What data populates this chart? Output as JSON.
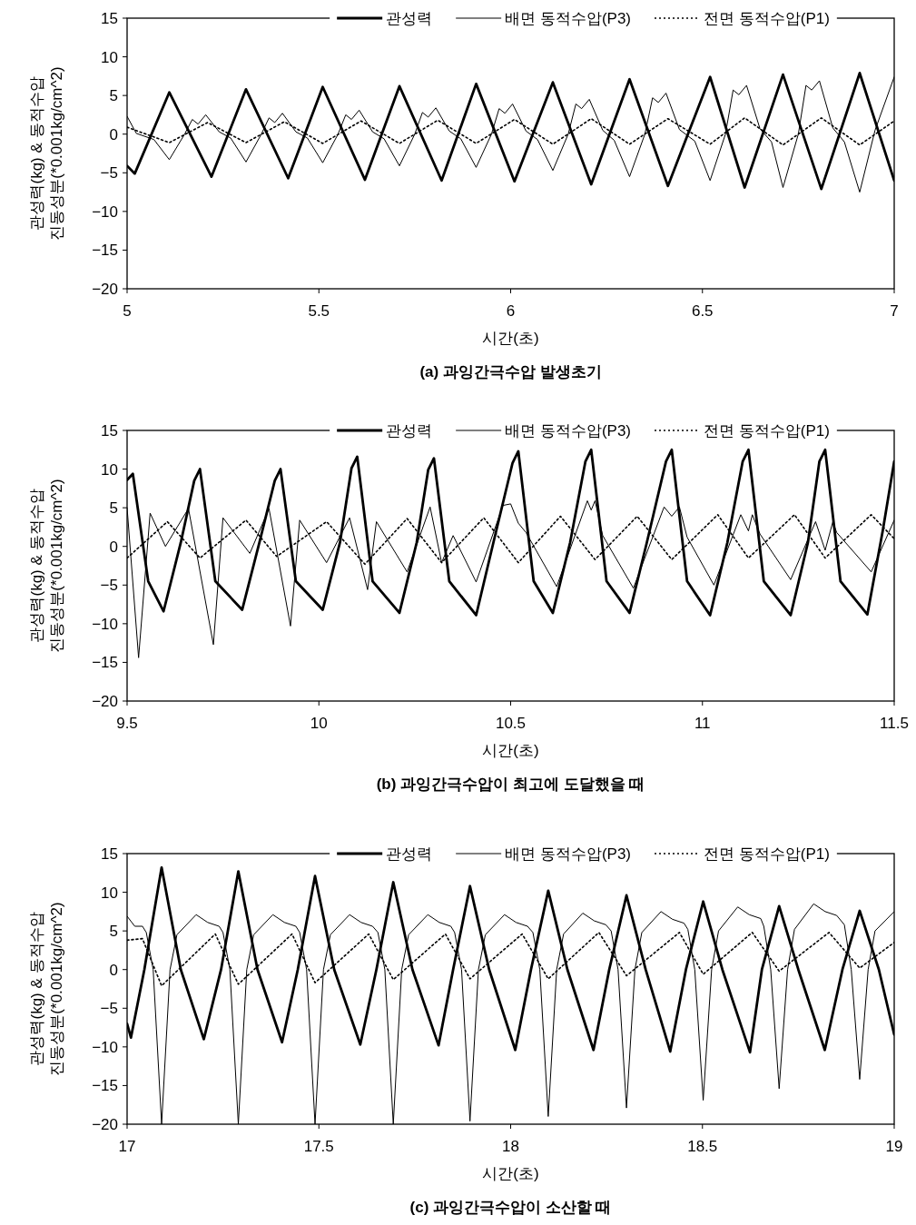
{
  "chart_data": [
    {
      "type": "line",
      "title": "(a) 과잉간극수압 발생초기",
      "xlabel": "시간(초)",
      "ylabel": "관성력(kg) & 동적수압\n진동성분(*0.001kg/cm^2)",
      "legend": "top",
      "xlim": [
        5,
        7
      ],
      "xticks": [
        5,
        5.5,
        6,
        6.5,
        7
      ],
      "ylim": [
        -20,
        15
      ],
      "yticks": [
        {
          "value": -20,
          "label": "−20"
        },
        {
          "value": -15,
          "label": "−15"
        },
        {
          "value": -10,
          "label": "−10"
        },
        {
          "value": -5,
          "label": "−5"
        },
        0,
        5,
        10,
        15
      ],
      "series": [
        {
          "name": "관성력",
          "color": "#000000",
          "line_style": "solid",
          "x": [
            5.0,
            5.02,
            5.11,
            5.22,
            5.31,
            5.42,
            5.51,
            5.62,
            5.71,
            5.82,
            5.91,
            6.01,
            6.11,
            6.21,
            6.31,
            6.41,
            6.52,
            6.61,
            6.71,
            6.81,
            6.91,
            7.0
          ],
          "values": [
            -4.1,
            -5.1,
            5.4,
            -5.5,
            5.8,
            -5.7,
            6.1,
            -5.9,
            6.2,
            -6.0,
            6.5,
            -6.1,
            6.7,
            -6.5,
            7.1,
            -6.7,
            7.4,
            -6.9,
            7.7,
            -7.1,
            7.9,
            -6.0
          ]
        },
        {
          "name": "배면 동적수압(P3)",
          "color": "#000000",
          "line_style": "solid",
          "x": [
            5.0,
            5.024,
            5.07,
            5.11,
            5.15,
            5.17,
            5.185,
            5.205,
            5.24,
            5.27,
            5.31,
            5.35,
            5.37,
            5.385,
            5.405,
            5.44,
            5.47,
            5.51,
            5.55,
            5.57,
            5.585,
            5.605,
            5.64,
            5.67,
            5.71,
            5.75,
            5.77,
            5.785,
            5.805,
            5.84,
            5.87,
            5.91,
            5.95,
            5.97,
            5.985,
            6.005,
            6.04,
            6.07,
            6.11,
            6.15,
            6.17,
            6.185,
            6.205,
            6.24,
            6.27,
            6.31,
            6.35,
            6.37,
            6.385,
            6.405,
            6.44,
            6.48,
            6.52,
            6.56,
            6.58,
            6.595,
            6.615,
            6.65,
            6.68,
            6.71,
            6.75,
            6.77,
            6.785,
            6.805,
            6.84,
            6.87,
            6.91,
            6.95,
            7.0
          ],
          "values": [
            2.3,
            0.1,
            -0.7,
            -3.3,
            0,
            1.9,
            1.3,
            2.5,
            0.3,
            -0.5,
            -3.6,
            0,
            2.1,
            1.5,
            2.7,
            0.3,
            -0.5,
            -3.7,
            0,
            2.5,
            1.9,
            3.1,
            0.3,
            -0.6,
            -4.1,
            0,
            2.8,
            2.2,
            3.4,
            0.4,
            -0.6,
            -4.3,
            0,
            3.3,
            2.7,
            3.9,
            0.4,
            -0.7,
            -4.7,
            0,
            3.9,
            3.3,
            4.5,
            0.5,
            -0.8,
            -5.5,
            0,
            4.7,
            4.1,
            5.3,
            0.6,
            -0.9,
            -6.0,
            0,
            5.7,
            5.1,
            6.3,
            0.7,
            -1.0,
            -6.9,
            0,
            6.3,
            5.7,
            6.9,
            0.8,
            -1.0,
            -7.5,
            0.5,
            7.4
          ]
        },
        {
          "name": "전면 동적수압(P1)",
          "color": "#000000",
          "line_style": "dotted",
          "x": [
            5.0,
            5.11,
            5.21,
            5.31,
            5.41,
            5.51,
            5.61,
            5.71,
            5.81,
            5.91,
            6.01,
            6.11,
            6.21,
            6.31,
            6.41,
            6.52,
            6.61,
            6.71,
            6.81,
            6.91,
            7.0
          ],
          "values": [
            0.9,
            -1.1,
            1.5,
            -1.1,
            1.6,
            -1.2,
            1.7,
            -1.2,
            1.8,
            -1.2,
            1.9,
            -1.3,
            2.0,
            -1.3,
            2.0,
            -1.3,
            2.1,
            -1.4,
            2.1,
            -1.4,
            1.7
          ]
        }
      ]
    },
    {
      "type": "line",
      "title": "(b) 과잉간극수압이 최고에 도달했을 때",
      "xlabel": "시간(초)",
      "ylabel": "관성력(kg) & 동적수압\n진동성분(*0.001kg/cm^2)",
      "legend": "top",
      "xlim": [
        9.5,
        11.5
      ],
      "xticks": [
        9.5,
        10,
        10.5,
        11,
        11.5
      ],
      "ylim": [
        -20,
        15
      ],
      "yticks": [
        {
          "value": -20,
          "label": "−20"
        },
        {
          "value": -15,
          "label": "−15"
        },
        {
          "value": -10,
          "label": "−10"
        },
        {
          "value": -5,
          "label": "−5"
        },
        0,
        5,
        10,
        15
      ],
      "series": [
        {
          "name": "관성력",
          "color": "#000000",
          "line_style": "solid",
          "x": [
            9.5,
            9.515,
            9.555,
            9.595,
            9.64,
            9.675,
            9.69,
            9.73,
            9.8,
            9.845,
            9.885,
            9.9,
            9.94,
            10.01,
            10.055,
            10.085,
            10.1,
            10.14,
            10.21,
            10.255,
            10.285,
            10.3,
            10.34,
            10.41,
            10.455,
            10.505,
            10.52,
            10.56,
            10.61,
            10.655,
            10.695,
            10.71,
            10.75,
            10.81,
            10.855,
            10.905,
            10.92,
            10.96,
            11.02,
            11.065,
            11.105,
            11.12,
            11.16,
            11.23,
            11.275,
            11.305,
            11.32,
            11.36,
            11.43,
            11.47,
            11.5
          ],
          "values": [
            8.6,
            9.4,
            -4.5,
            -8.4,
            0.5,
            8.5,
            10.0,
            -4.5,
            -8.2,
            0.5,
            8.5,
            10.0,
            -4.5,
            -8.2,
            0.5,
            10.1,
            11.6,
            -4.5,
            -8.6,
            0.5,
            9.9,
            11.4,
            -4.5,
            -8.9,
            0.5,
            10.8,
            12.3,
            -4.5,
            -8.6,
            0.5,
            11.0,
            12.5,
            -4.5,
            -8.6,
            0.5,
            11.0,
            12.5,
            -4.5,
            -8.9,
            0.5,
            11.0,
            12.5,
            -4.5,
            -8.9,
            0.5,
            11.0,
            12.5,
            -4.5,
            -8.8,
            2.0,
            11.0
          ]
        },
        {
          "name": "배면 동적수압(P3)",
          "color": "#000000",
          "line_style": "solid",
          "x": [
            9.5,
            9.53,
            9.56,
            9.6,
            9.66,
            9.725,
            9.75,
            9.82,
            9.87,
            9.926,
            9.95,
            10.02,
            10.08,
            10.127,
            10.15,
            10.23,
            10.29,
            10.32,
            10.35,
            10.41,
            10.48,
            10.5,
            10.52,
            10.54,
            10.62,
            10.7,
            10.71,
            10.72,
            10.74,
            10.82,
            10.9,
            10.92,
            10.94,
            10.96,
            11.03,
            11.1,
            11.12,
            11.13,
            11.15,
            11.23,
            11.295,
            11.32,
            11.34,
            11.35,
            11.44,
            11.5
          ],
          "values": [
            5.0,
            -14.4,
            4.3,
            0.0,
            4.9,
            -12.7,
            3.7,
            -0.9,
            4.9,
            -10.3,
            3.4,
            -2.1,
            3.7,
            -5.6,
            3.2,
            -3.3,
            5.1,
            -2.1,
            1.4,
            -4.6,
            5.3,
            5.5,
            3.0,
            1.8,
            -5.2,
            5.9,
            4.7,
            5.9,
            1.4,
            -5.4,
            5.1,
            3.9,
            5.1,
            1.2,
            -5.0,
            4.1,
            2.0,
            4.1,
            1.6,
            -4.3,
            3.2,
            -0.5,
            3.2,
            1.8,
            -3.3,
            3.4
          ]
        },
        {
          "name": "전면 동적수압(P1)",
          "color": "#000000",
          "line_style": "dotted",
          "x": [
            9.5,
            9.605,
            9.69,
            9.81,
            9.89,
            10.02,
            10.12,
            10.23,
            10.32,
            10.43,
            10.52,
            10.63,
            10.72,
            10.83,
            10.92,
            11.04,
            11.12,
            11.24,
            11.32,
            11.44,
            11.5
          ],
          "values": [
            -1.5,
            3.2,
            -1.5,
            3.4,
            -1.3,
            3.2,
            -2.3,
            3.6,
            -2.1,
            3.7,
            -2.1,
            3.9,
            -1.7,
            3.9,
            -1.7,
            4.1,
            -1.5,
            4.1,
            -1.5,
            4.1,
            1.0
          ]
        }
      ]
    },
    {
      "type": "line",
      "title": "(c) 과잉간극수압이 소산할 때",
      "xlabel": "시간(초)",
      "ylabel": "관성력(kg) & 동적수압\n진동성분(*0.001kg/cm^2)",
      "legend": "top",
      "xlim": [
        17,
        19
      ],
      "xticks": [
        17,
        17.5,
        18,
        18.5,
        19
      ],
      "ylim": [
        -20,
        15
      ],
      "yticks": [
        {
          "value": -20,
          "label": "−20"
        },
        {
          "value": -15,
          "label": "−15"
        },
        {
          "value": -10,
          "label": "−10"
        },
        {
          "value": -5,
          "label": "−5"
        },
        0,
        5,
        10,
        15
      ],
      "series": [
        {
          "name": "관성력",
          "color": "#000000",
          "line_style": "solid",
          "x": [
            17.0,
            17.01,
            17.045,
            17.09,
            17.14,
            17.2,
            17.245,
            17.29,
            17.34,
            17.404,
            17.445,
            17.49,
            17.54,
            17.608,
            17.65,
            17.694,
            17.744,
            17.812,
            17.85,
            17.894,
            17.944,
            18.012,
            18.053,
            18.098,
            18.148,
            18.216,
            18.257,
            18.302,
            18.352,
            18.416,
            18.457,
            18.502,
            18.552,
            18.624,
            18.655,
            18.7,
            18.75,
            18.819,
            18.865,
            18.91,
            18.96,
            19.0
          ],
          "values": [
            -7.0,
            -8.8,
            0,
            13.2,
            0,
            -9.0,
            0,
            12.7,
            0,
            -9.4,
            0,
            12.1,
            0,
            -9.7,
            0,
            11.3,
            0,
            -9.8,
            0,
            10.8,
            0,
            -10.4,
            0,
            10.2,
            0,
            -10.4,
            0,
            9.6,
            0,
            -10.6,
            0,
            8.8,
            0,
            -10.7,
            0,
            8.2,
            0,
            -10.4,
            0,
            7.6,
            0,
            -8.4
          ]
        },
        {
          "name": "배면 동적수압(P3)",
          "color": "#000000",
          "line_style": "solid",
          "x": [
            17.0,
            17.02,
            17.04,
            17.05,
            17.068,
            17.09,
            17.112,
            17.13,
            17.18,
            17.21,
            17.24,
            17.25,
            17.268,
            17.29,
            17.312,
            17.33,
            17.38,
            17.41,
            17.44,
            17.45,
            17.468,
            17.49,
            17.512,
            17.53,
            17.58,
            17.61,
            17.64,
            17.654,
            17.672,
            17.694,
            17.716,
            17.734,
            17.784,
            17.814,
            17.844,
            17.854,
            17.872,
            17.894,
            17.916,
            17.934,
            17.984,
            18.014,
            18.044,
            18.058,
            18.076,
            18.098,
            18.12,
            18.138,
            18.188,
            18.218,
            18.248,
            18.262,
            18.28,
            18.302,
            18.324,
            18.342,
            18.392,
            18.422,
            18.452,
            18.462,
            18.48,
            18.502,
            18.524,
            18.542,
            18.592,
            18.622,
            18.652,
            18.66,
            18.678,
            18.7,
            18.722,
            18.74,
            18.79,
            18.82,
            18.85,
            18.87,
            18.888,
            18.91,
            18.932,
            18.95,
            19.0
          ],
          "values": [
            6.9,
            5.6,
            5.6,
            4.8,
            0,
            -20,
            0,
            4.5,
            7.1,
            6.1,
            5.6,
            4.8,
            0,
            -20,
            0,
            4.5,
            7.1,
            6.1,
            5.6,
            4.8,
            0,
            -20,
            0,
            4.5,
            7.1,
            6.1,
            5.6,
            4.8,
            0,
            -20,
            0,
            4.5,
            7.1,
            6.1,
            5.6,
            4.8,
            0,
            -19.6,
            0,
            4.5,
            7.1,
            6.1,
            5.6,
            4.8,
            0,
            -19.0,
            0,
            4.6,
            7.3,
            6.3,
            5.8,
            5.0,
            0,
            -17.9,
            0,
            4.8,
            7.5,
            6.5,
            6.0,
            5.2,
            0,
            -16.9,
            0,
            5.0,
            8.1,
            7.1,
            6.6,
            5.6,
            0,
            -15.4,
            0,
            5.2,
            8.5,
            7.5,
            7.0,
            5.8,
            0,
            -14.2,
            0,
            5.0,
            7.5
          ]
        },
        {
          "name": "전면 동적수압(P1)",
          "color": "#000000",
          "line_style": "dotted",
          "x": [
            17.0,
            17.04,
            17.09,
            17.23,
            17.29,
            17.43,
            17.49,
            17.63,
            17.694,
            17.83,
            17.894,
            18.03,
            18.098,
            18.23,
            18.302,
            18.44,
            18.502,
            18.63,
            18.7,
            18.83,
            18.91,
            19.0
          ],
          "values": [
            3.8,
            4.0,
            -2.1,
            4.6,
            -1.9,
            4.6,
            -1.7,
            4.6,
            -1.3,
            4.6,
            -1.2,
            4.6,
            -1.2,
            4.8,
            -0.8,
            4.8,
            -0.6,
            4.8,
            -0.2,
            4.8,
            0.2,
            3.5
          ]
        }
      ]
    }
  ]
}
